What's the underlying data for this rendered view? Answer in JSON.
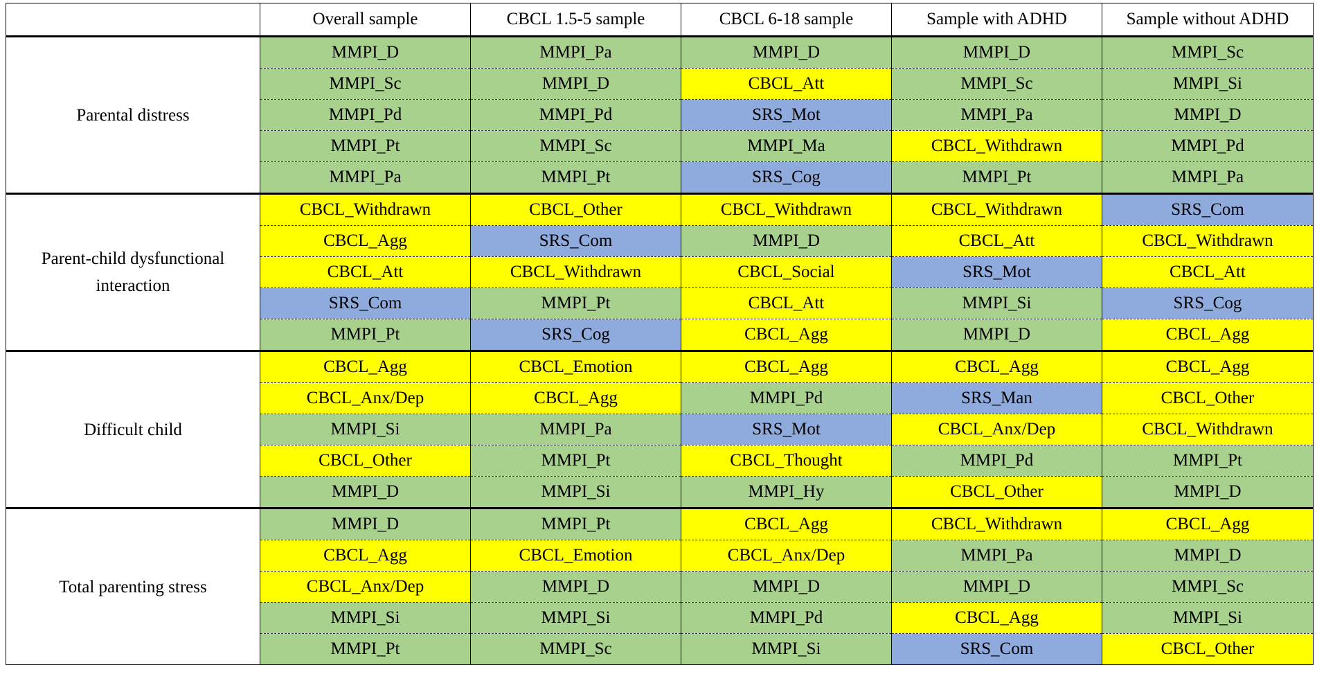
{
  "colors": {
    "MMPI": "#a9d18e",
    "CBCL": "#ffff00",
    "SRS": "#8faadc"
  },
  "table": {
    "corner": "",
    "columns": [
      "Overall sample",
      "CBCL 1.5-5 sample",
      "CBCL 6-18 sample",
      "Sample with ADHD",
      "Sample without ADHD"
    ],
    "groups": [
      {
        "label": "Parental distress",
        "rows": [
          [
            "MMPI_D",
            "MMPI_Pa",
            "MMPI_D",
            "MMPI_D",
            "MMPI_Sc"
          ],
          [
            "MMPI_Sc",
            "MMPI_D",
            "CBCL_Att",
            "MMPI_Sc",
            "MMPI_Si"
          ],
          [
            "MMPI_Pd",
            "MMPI_Pd",
            "SRS_Mot",
            "MMPI_Pa",
            "MMPI_D"
          ],
          [
            "MMPI_Pt",
            "MMPI_Sc",
            "MMPI_Ma",
            "CBCL_Withdrawn",
            "MMPI_Pd"
          ],
          [
            "MMPI_Pa",
            "MMPI_Pt",
            "SRS_Cog",
            "MMPI_Pt",
            "MMPI_Pa"
          ]
        ]
      },
      {
        "label": "Parent-child dysfunctional interaction",
        "rows": [
          [
            "CBCL_Withdrawn",
            "CBCL_Other",
            "CBCL_Withdrawn",
            "CBCL_Withdrawn",
            "SRS_Com"
          ],
          [
            "CBCL_Agg",
            "SRS_Com",
            "MMPI_D",
            "CBCL_Att",
            "CBCL_Withdrawn"
          ],
          [
            "CBCL_Att",
            "CBCL_Withdrawn",
            "CBCL_Social",
            "SRS_Mot",
            "CBCL_Att"
          ],
          [
            "SRS_Com",
            "MMPI_Pt",
            "CBCL_Att",
            "MMPI_Si",
            "SRS_Cog"
          ],
          [
            "MMPI_Pt",
            "SRS_Cog",
            "CBCL_Agg",
            "MMPI_D",
            "CBCL_Agg"
          ]
        ]
      },
      {
        "label": "Difficult child",
        "rows": [
          [
            "CBCL_Agg",
            "CBCL_Emotion",
            "CBCL_Agg",
            "CBCL_Agg",
            "CBCL_Agg"
          ],
          [
            "CBCL_Anx/Dep",
            "CBCL_Agg",
            "MMPI_Pd",
            "SRS_Man",
            "CBCL_Other"
          ],
          [
            "MMPI_Si",
            "MMPI_Pa",
            "SRS_Mot",
            "CBCL_Anx/Dep",
            "CBCL_Withdrawn"
          ],
          [
            "CBCL_Other",
            "MMPI_Pt",
            "CBCL_Thought",
            "MMPI_Pd",
            "MMPI_Pt"
          ],
          [
            "MMPI_D",
            "MMPI_Si",
            "MMPI_Hy",
            "CBCL_Other",
            "MMPI_D"
          ]
        ]
      },
      {
        "label": "Total parenting stress",
        "rows": [
          [
            "MMPI_D",
            "MMPI_Pt",
            "CBCL_Agg",
            "CBCL_Withdrawn",
            "CBCL_Agg"
          ],
          [
            "CBCL_Agg",
            "CBCL_Emotion",
            "CBCL_Anx/Dep",
            "MMPI_Pa",
            "MMPI_D"
          ],
          [
            "CBCL_Anx/Dep",
            "MMPI_D",
            "MMPI_D",
            "MMPI_D",
            "MMPI_Sc"
          ],
          [
            "MMPI_Si",
            "MMPI_Si",
            "MMPI_Pd",
            "CBCL_Agg",
            "MMPI_Si"
          ],
          [
            "MMPI_Pt",
            "MMPI_Sc",
            "MMPI_Si",
            "SRS_Com",
            "CBCL_Other"
          ]
        ]
      }
    ]
  }
}
